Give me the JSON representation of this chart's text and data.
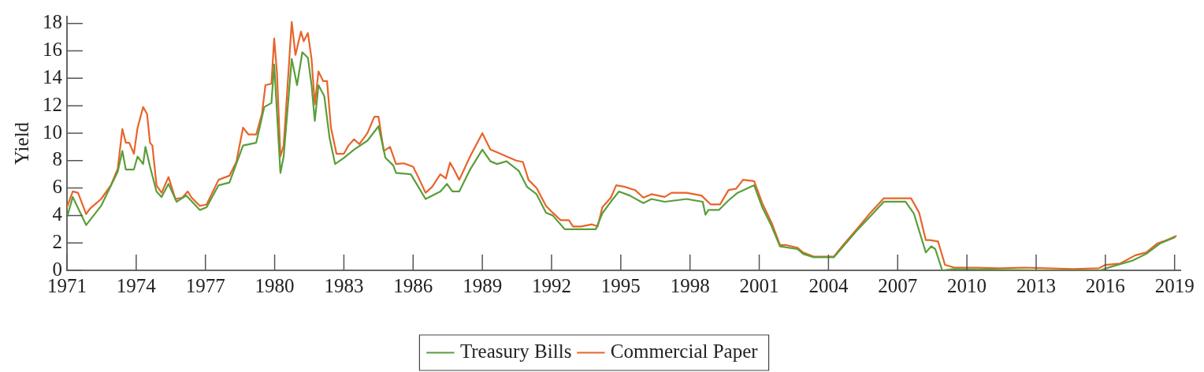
{
  "chart_data": {
    "type": "line",
    "ylabel": "Yield",
    "xlim": [
      1971,
      2019.25
    ],
    "ylim": [
      0,
      18.5
    ],
    "xticks": [
      1971,
      1974,
      1977,
      1980,
      1983,
      1986,
      1989,
      1992,
      1995,
      1998,
      2001,
      2004,
      2007,
      2010,
      2013,
      2016,
      2019
    ],
    "yticks": [
      0,
      2,
      4,
      6,
      8,
      10,
      12,
      14,
      16,
      18
    ],
    "grid": false,
    "legend": "bottom",
    "marker": "none",
    "line_style": "solid",
    "series": [
      {
        "name": "Treasury Bills",
        "color": "#5a9e3a",
        "x": [
          1971.0,
          1971.25,
          1971.83,
          1972.48,
          1973.2,
          1973.4,
          1973.55,
          1973.9,
          1974.06,
          1974.3,
          1974.4,
          1974.6,
          1974.88,
          1975.1,
          1975.4,
          1975.75,
          1976.17,
          1976.76,
          1977.05,
          1977.57,
          1978.04,
          1978.63,
          1979.2,
          1979.55,
          1979.86,
          1979.98,
          1980.25,
          1980.39,
          1980.74,
          1980.97,
          1981.2,
          1981.44,
          1981.6,
          1981.74,
          1981.9,
          1982.15,
          1982.38,
          1982.62,
          1983.0,
          1983.44,
          1984.02,
          1984.5,
          1984.8,
          1985.14,
          1985.26,
          1985.9,
          1986.26,
          1986.54,
          1987.18,
          1987.47,
          1987.7,
          1988.0,
          1988.47,
          1989.0,
          1989.35,
          1989.64,
          1990.05,
          1990.58,
          1990.93,
          1991.35,
          1991.76,
          1992.05,
          1992.57,
          1992.93,
          1993.51,
          1993.92,
          1994.2,
          1994.57,
          1994.92,
          1995.39,
          1995.98,
          1996.33,
          1996.9,
          1997.85,
          1998.55,
          1998.67,
          1998.8,
          1999.25,
          1999.67,
          2000.06,
          2000.78,
          2001.13,
          2001.5,
          2001.9,
          2002.66,
          2002.9,
          2003.36,
          2004.23,
          2005.23,
          2005.82,
          2006.4,
          2007.34,
          2007.7,
          2008.22,
          2008.45,
          2008.63,
          2008.93,
          2009.45,
          2011.1,
          2013.44,
          2015.78,
          2016.23,
          2017.17,
          2017.77,
          2018.36,
          2019.0
        ],
        "values": [
          3.85,
          5.35,
          3.3,
          4.7,
          7.2,
          8.7,
          7.35,
          7.35,
          8.3,
          7.75,
          9.0,
          7.55,
          5.75,
          5.35,
          6.3,
          5.0,
          5.45,
          4.4,
          4.6,
          6.2,
          6.4,
          9.1,
          9.3,
          11.9,
          12.2,
          15.0,
          7.1,
          8.3,
          15.4,
          13.5,
          15.9,
          15.5,
          13.5,
          10.9,
          13.5,
          12.7,
          9.65,
          7.75,
          8.2,
          8.8,
          9.45,
          10.5,
          8.2,
          7.65,
          7.1,
          7.0,
          6.0,
          5.2,
          5.75,
          6.3,
          5.75,
          5.75,
          7.35,
          8.8,
          7.95,
          7.75,
          7.95,
          7.25,
          6.1,
          5.55,
          4.2,
          4.0,
          3.0,
          3.0,
          3.0,
          3.0,
          4.15,
          5.0,
          5.75,
          5.45,
          4.9,
          5.2,
          5.0,
          5.2,
          5.0,
          4.05,
          4.4,
          4.4,
          5.1,
          5.65,
          6.2,
          4.6,
          3.35,
          1.75,
          1.55,
          1.2,
          0.95,
          0.95,
          2.9,
          3.95,
          5.0,
          5.0,
          4.15,
          1.3,
          1.75,
          1.55,
          0.0,
          0.1,
          0.05,
          0.0,
          0.0,
          0.25,
          0.7,
          1.2,
          1.95,
          2.4
        ]
      },
      {
        "name": "Commercial Paper",
        "color": "#e8642a",
        "x": [
          1971.0,
          1971.25,
          1971.48,
          1971.83,
          1972.0,
          1972.48,
          1972.9,
          1973.2,
          1973.4,
          1973.55,
          1973.7,
          1973.9,
          1974.06,
          1974.3,
          1974.47,
          1974.6,
          1974.7,
          1974.88,
          1975.1,
          1975.4,
          1975.7,
          1976.0,
          1976.23,
          1976.4,
          1976.76,
          1977.05,
          1977.57,
          1978.04,
          1978.34,
          1978.63,
          1978.87,
          1979.2,
          1979.45,
          1979.6,
          1979.86,
          1979.98,
          1980.1,
          1980.25,
          1980.39,
          1980.74,
          1980.9,
          1981.14,
          1981.26,
          1981.44,
          1981.6,
          1981.74,
          1981.9,
          1982.1,
          1982.27,
          1982.44,
          1982.68,
          1983.0,
          1983.2,
          1983.44,
          1983.67,
          1984.02,
          1984.32,
          1984.5,
          1984.73,
          1985.0,
          1985.26,
          1985.6,
          1986.0,
          1986.25,
          1986.54,
          1986.83,
          1987.18,
          1987.42,
          1987.6,
          1987.77,
          1988.0,
          1988.47,
          1989.0,
          1989.35,
          1989.64,
          1990.05,
          1990.47,
          1990.76,
          1991.0,
          1991.35,
          1991.76,
          1992.05,
          1992.4,
          1992.75,
          1992.93,
          1993.28,
          1993.75,
          1994.0,
          1994.2,
          1994.57,
          1994.8,
          1995.15,
          1995.62,
          1995.98,
          1996.33,
          1996.9,
          1997.2,
          1997.85,
          1998.5,
          1998.9,
          1999.3,
          1999.67,
          2000.0,
          2000.3,
          2000.78,
          2001.13,
          2001.54,
          2001.9,
          2002.13,
          2002.66,
          2002.9,
          2003.36,
          2004.23,
          2004.64,
          2005.23,
          2005.82,
          2006.4,
          2006.76,
          2007.58,
          2007.93,
          2008.22,
          2008.4,
          2008.75,
          2009.05,
          2009.45,
          2010.4,
          2011.33,
          2012.5,
          2013.44,
          2014.6,
          2015.72,
          2016.0,
          2016.65,
          2017.3,
          2017.77,
          2018.24,
          2018.65,
          2019.06
        ],
        "values": [
          4.6,
          5.75,
          5.65,
          4.1,
          4.5,
          5.2,
          6.2,
          7.4,
          10.3,
          9.3,
          9.3,
          8.5,
          10.4,
          11.9,
          11.4,
          9.3,
          9.1,
          6.2,
          5.65,
          6.8,
          5.2,
          5.3,
          5.75,
          5.3,
          4.7,
          4.8,
          6.6,
          6.9,
          7.9,
          10.4,
          9.9,
          9.9,
          11.4,
          13.5,
          13.6,
          16.9,
          14.4,
          8.3,
          9.1,
          18.1,
          15.7,
          17.4,
          16.7,
          17.3,
          15.4,
          12.1,
          14.5,
          13.8,
          13.8,
          10.4,
          8.5,
          8.5,
          9.1,
          9.55,
          9.2,
          10.0,
          11.2,
          11.2,
          8.7,
          9.0,
          7.75,
          7.8,
          7.55,
          6.7,
          5.65,
          6.1,
          7.0,
          6.7,
          7.85,
          7.35,
          6.6,
          8.3,
          10.0,
          8.8,
          8.6,
          8.3,
          8.0,
          7.9,
          6.6,
          6.0,
          4.7,
          4.2,
          3.65,
          3.65,
          3.2,
          3.2,
          3.35,
          3.2,
          4.6,
          5.3,
          6.2,
          6.1,
          5.85,
          5.3,
          5.55,
          5.35,
          5.65,
          5.65,
          5.45,
          4.8,
          4.8,
          5.85,
          5.95,
          6.6,
          6.5,
          4.9,
          3.45,
          1.85,
          1.85,
          1.65,
          1.3,
          1.0,
          1.0,
          1.85,
          3.0,
          4.2,
          5.25,
          5.25,
          5.25,
          4.2,
          2.2,
          2.2,
          2.1,
          0.4,
          0.2,
          0.2,
          0.15,
          0.2,
          0.15,
          0.1,
          0.15,
          0.4,
          0.5,
          1.1,
          1.3,
          1.95,
          2.2,
          2.5
        ]
      }
    ]
  }
}
